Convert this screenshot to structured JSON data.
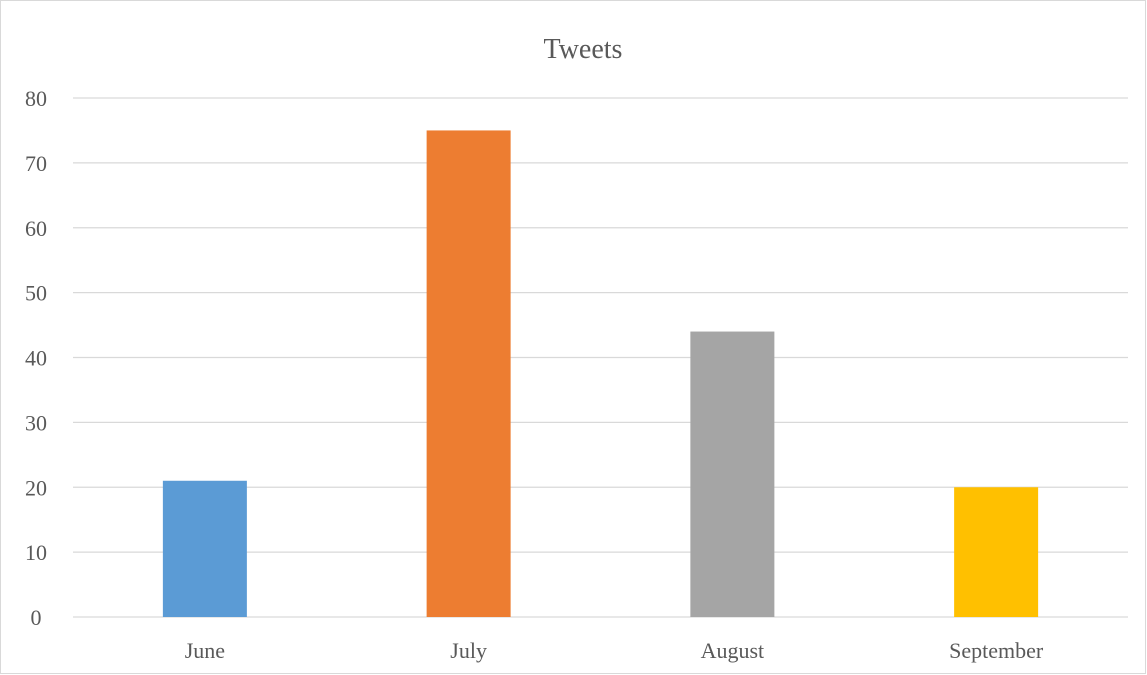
{
  "chart_data": {
    "type": "bar",
    "title": "Tweets",
    "categories": [
      "June",
      "July",
      "August",
      "September"
    ],
    "values": [
      21,
      75,
      44,
      20
    ],
    "colors": [
      "#5b9bd5",
      "#ed7d31",
      "#a5a5a5",
      "#ffc000"
    ],
    "gridline_color": "#d9d9d9",
    "xlabel": "",
    "ylabel": "",
    "ylim": [
      0,
      80
    ],
    "yticks": [
      0,
      10,
      20,
      30,
      40,
      50,
      60,
      70,
      80
    ],
    "grid": true,
    "legend": "none"
  }
}
